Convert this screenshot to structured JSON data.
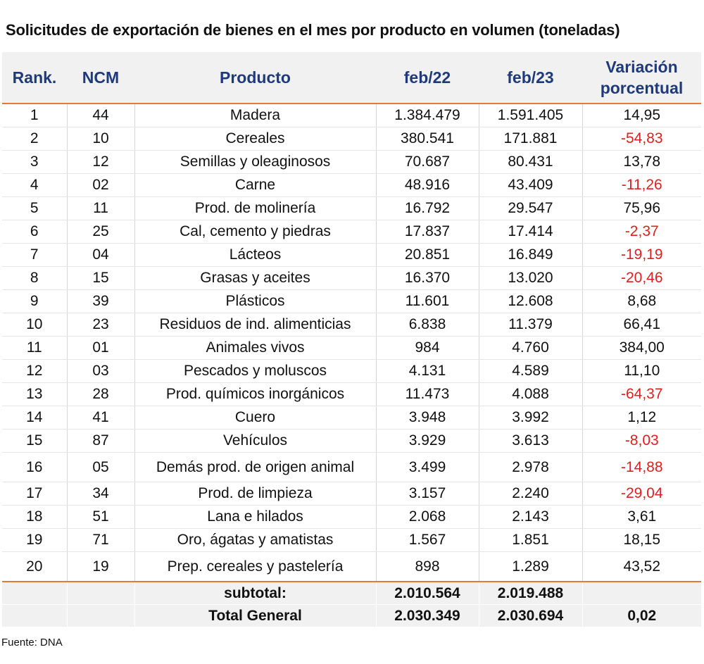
{
  "title": "Solicitudes de exportación de bienes en el mes por producto en volumen (toneladas)",
  "headers": {
    "rank": "Rank.",
    "ncm": "NCM",
    "product": "Producto",
    "feb22": "feb/22",
    "feb23": "feb/23",
    "variation_line1": "Variación",
    "variation_line2": "porcentual"
  },
  "rows": [
    {
      "rank": "1",
      "ncm": "44",
      "product": "Madera",
      "feb22": "1.384.479",
      "feb23": "1.591.405",
      "variation": "14,95",
      "negative": false
    },
    {
      "rank": "2",
      "ncm": "10",
      "product": "Cereales",
      "feb22": "380.541",
      "feb23": "171.881",
      "variation": "-54,83",
      "negative": true
    },
    {
      "rank": "3",
      "ncm": "12",
      "product": "Semillas y oleaginosos",
      "feb22": "70.687",
      "feb23": "80.431",
      "variation": "13,78",
      "negative": false
    },
    {
      "rank": "4",
      "ncm": "02",
      "product": "Carne",
      "feb22": "48.916",
      "feb23": "43.409",
      "variation": "-11,26",
      "negative": true
    },
    {
      "rank": "5",
      "ncm": "11",
      "product": "Prod. de molinería",
      "feb22": "16.792",
      "feb23": "29.547",
      "variation": "75,96",
      "negative": false
    },
    {
      "rank": "6",
      "ncm": "25",
      "product": "Cal, cemento y piedras",
      "feb22": "17.837",
      "feb23": "17.414",
      "variation": "-2,37",
      "negative": true
    },
    {
      "rank": "7",
      "ncm": "04",
      "product": "Lácteos",
      "feb22": "20.851",
      "feb23": "16.849",
      "variation": "-19,19",
      "negative": true
    },
    {
      "rank": "8",
      "ncm": "15",
      "product": "Grasas y aceites",
      "feb22": "16.370",
      "feb23": "13.020",
      "variation": "-20,46",
      "negative": true
    },
    {
      "rank": "9",
      "ncm": "39",
      "product": "Plásticos",
      "feb22": "11.601",
      "feb23": "12.608",
      "variation": "8,68",
      "negative": false
    },
    {
      "rank": "10",
      "ncm": "23",
      "product": "Residuos de ind. alimenticias",
      "feb22": "6.838",
      "feb23": "11.379",
      "variation": "66,41",
      "negative": false
    },
    {
      "rank": "11",
      "ncm": "01",
      "product": "Animales vivos",
      "feb22": "984",
      "feb23": "4.760",
      "variation": "384,00",
      "negative": false
    },
    {
      "rank": "12",
      "ncm": "03",
      "product": "Pescados y moluscos",
      "feb22": "4.131",
      "feb23": "4.589",
      "variation": "11,10",
      "negative": false
    },
    {
      "rank": "13",
      "ncm": "28",
      "product": "Prod. químicos inorgánicos",
      "feb22": "11.473",
      "feb23": "4.088",
      "variation": "-64,37",
      "negative": true
    },
    {
      "rank": "14",
      "ncm": "41",
      "product": "Cuero",
      "feb22": "3.948",
      "feb23": "3.992",
      "variation": "1,12",
      "negative": false
    },
    {
      "rank": "15",
      "ncm": "87",
      "product": "Vehículos",
      "feb22": "3.929",
      "feb23": "3.613",
      "variation": "-8,03",
      "negative": true
    },
    {
      "rank": "16",
      "ncm": "05",
      "product": "Demás prod. de origen animal",
      "feb22": "3.499",
      "feb23": "2.978",
      "variation": "-14,88",
      "negative": true
    },
    {
      "rank": "17",
      "ncm": "34",
      "product": "Prod. de limpieza",
      "feb22": "3.157",
      "feb23": "2.240",
      "variation": "-29,04",
      "negative": true
    },
    {
      "rank": "18",
      "ncm": "51",
      "product": "Lana e hilados",
      "feb22": "2.068",
      "feb23": "2.143",
      "variation": "3,61",
      "negative": false
    },
    {
      "rank": "19",
      "ncm": "71",
      "product": "Oro, ágatas y amatistas",
      "feb22": "1.567",
      "feb23": "1.851",
      "variation": "18,15",
      "negative": false
    },
    {
      "rank": "20",
      "ncm": "19",
      "product": "Prep. cereales y pastelería",
      "feb22": "898",
      "feb23": "1.289",
      "variation": "43,52",
      "negative": false
    }
  ],
  "subtotal": {
    "label": "subtotal:",
    "feb22": "2.010.564",
    "feb23": "2.019.488",
    "variation": ""
  },
  "total": {
    "label": "Total General",
    "feb22": "2.030.349",
    "feb23": "2.030.694",
    "variation": "0,02"
  },
  "source": "Fuente: DNA",
  "colors": {
    "header_text": "#1f3a7a",
    "accent_border": "#e07b39",
    "negative": "#e02020",
    "header_bg": "#f1f1f1"
  }
}
